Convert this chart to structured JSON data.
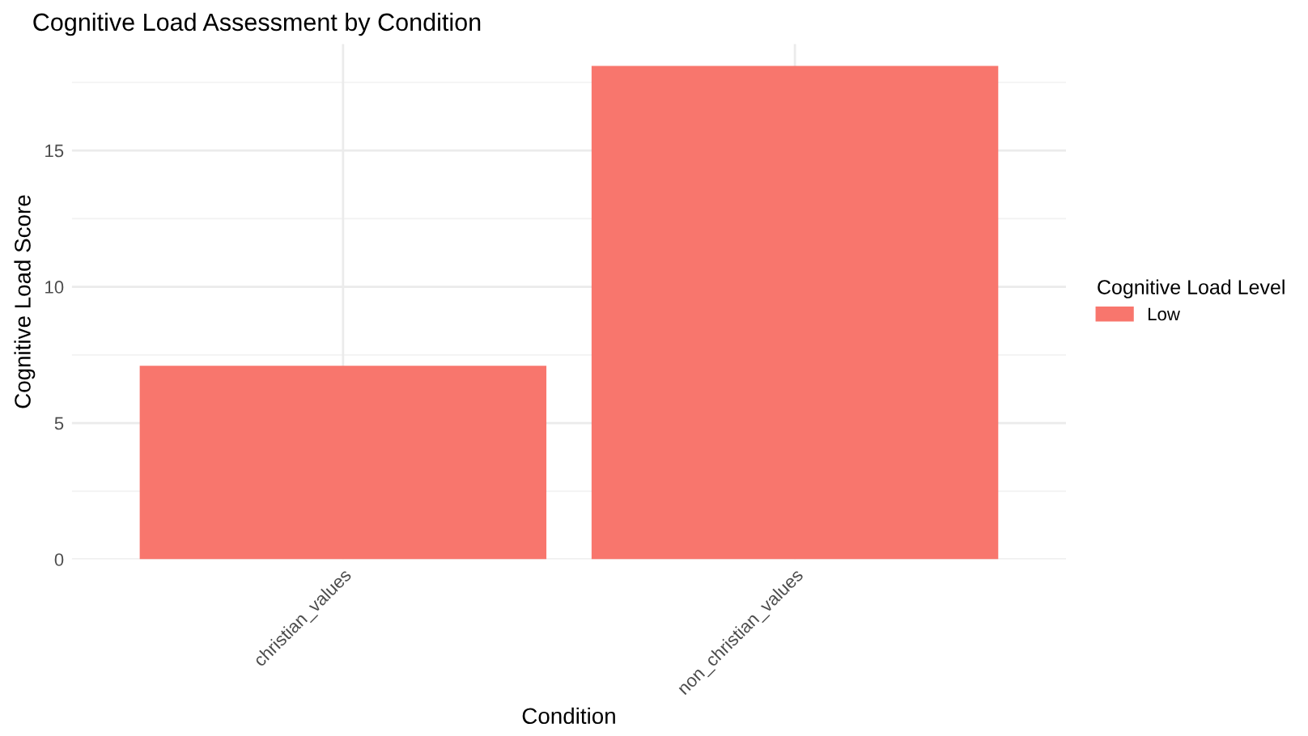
{
  "chart_data": {
    "type": "bar",
    "title": "Cognitive Load Assessment by Condition",
    "xlabel": "Condition",
    "ylabel": "Cognitive Load Score",
    "legend_title": "Cognitive Load Level",
    "categories": [
      "christian_values",
      "non_christian_values"
    ],
    "series": [
      {
        "name": "Low",
        "color": "#f8766d",
        "values": [
          7.1,
          18.1
        ]
      }
    ],
    "ylim": [
      0,
      18.9
    ],
    "yticks": [
      0,
      5,
      10,
      15
    ],
    "grid": true,
    "legend": "right"
  }
}
